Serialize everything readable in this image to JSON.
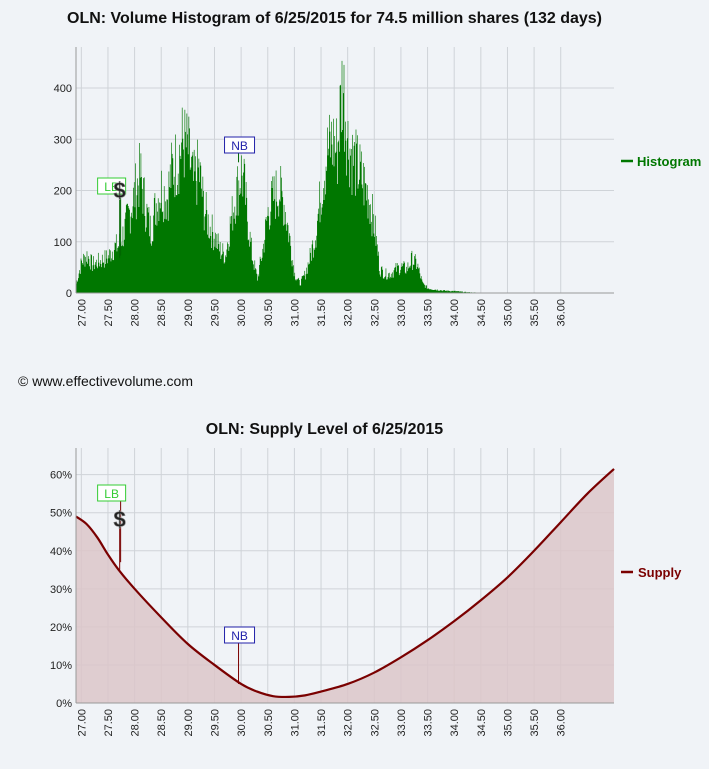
{
  "histogram_chart": {
    "title": "OLN: Volume Histogram of 6/25/2015 for 74.5 million shares (132 days)",
    "legend": "Histogram",
    "color": "#007700",
    "marker_lb": "LB",
    "marker_nb": "NB",
    "marker_dollar": "$"
  },
  "supply_chart": {
    "title": "OLN: Supply Level of 6/25/2015",
    "legend": "Supply",
    "color": "#7a0000",
    "fill": "#dcc5c9",
    "marker_lb": "LB",
    "marker_nb": "NB",
    "marker_dollar": "$"
  },
  "copyright": "© www.effectivevolume.com",
  "chart_data": [
    {
      "type": "bar",
      "title": "OLN: Volume Histogram of 6/25/2015 for 74.5 million shares (132 days)",
      "xlim": [
        26.9,
        37.0
      ],
      "ylim": [
        0,
        480
      ],
      "x_ticks": [
        "27.00",
        "27.50",
        "28.00",
        "28.50",
        "29.00",
        "29.50",
        "30.00",
        "30.50",
        "31.00",
        "31.50",
        "32.00",
        "32.50",
        "33.00",
        "33.50",
        "34.00",
        "34.50",
        "35.00",
        "35.50",
        "36.00"
      ],
      "y_ticks": [
        0,
        100,
        200,
        300,
        400
      ],
      "series": [
        {
          "name": "Histogram",
          "points": [
            [
              26.9,
              20
            ],
            [
              27.0,
              65
            ],
            [
              27.1,
              80
            ],
            [
              27.2,
              60
            ],
            [
              27.3,
              65
            ],
            [
              27.4,
              70
            ],
            [
              27.5,
              75
            ],
            [
              27.6,
              95
            ],
            [
              27.7,
              100
            ],
            [
              27.8,
              130
            ],
            [
              27.9,
              170
            ],
            [
              28.0,
              210
            ],
            [
              28.1,
              250
            ],
            [
              28.2,
              180
            ],
            [
              28.3,
              130
            ],
            [
              28.4,
              190
            ],
            [
              28.5,
              220
            ],
            [
              28.6,
              200
            ],
            [
              28.7,
              260
            ],
            [
              28.8,
              280
            ],
            [
              28.9,
              320
            ],
            [
              29.0,
              300
            ],
            [
              29.1,
              230
            ],
            [
              29.2,
              260
            ],
            [
              29.3,
              180
            ],
            [
              29.4,
              140
            ],
            [
              29.5,
              120
            ],
            [
              29.6,
              90
            ],
            [
              29.7,
              80
            ],
            [
              29.8,
              150
            ],
            [
              29.9,
              210
            ],
            [
              30.0,
              255
            ],
            [
              30.05,
              230
            ],
            [
              30.1,
              170
            ],
            [
              30.2,
              80
            ],
            [
              30.3,
              30
            ],
            [
              30.4,
              90
            ],
            [
              30.5,
              170
            ],
            [
              30.6,
              200
            ],
            [
              30.7,
              220
            ],
            [
              30.8,
              190
            ],
            [
              30.9,
              120
            ],
            [
              31.0,
              40
            ],
            [
              31.1,
              20
            ],
            [
              31.2,
              40
            ],
            [
              31.3,
              80
            ],
            [
              31.4,
              130
            ],
            [
              31.5,
              220
            ],
            [
              31.6,
              290
            ],
            [
              31.7,
              320
            ],
            [
              31.8,
              300
            ],
            [
              31.9,
              450
            ],
            [
              32.0,
              320
            ],
            [
              32.1,
              280
            ],
            [
              32.2,
              260
            ],
            [
              32.3,
              230
            ],
            [
              32.4,
              200
            ],
            [
              32.5,
              140
            ],
            [
              32.6,
              50
            ],
            [
              32.7,
              40
            ],
            [
              32.8,
              40
            ],
            [
              32.9,
              50
            ],
            [
              33.0,
              55
            ],
            [
              33.1,
              50
            ],
            [
              33.2,
              70
            ],
            [
              33.3,
              60
            ],
            [
              33.4,
              20
            ],
            [
              33.5,
              10
            ],
            [
              33.6,
              8
            ],
            [
              33.8,
              5
            ],
            [
              34.0,
              4
            ],
            [
              34.2,
              2
            ],
            [
              34.4,
              1
            ],
            [
              35.0,
              0
            ],
            [
              37.0,
              0
            ]
          ]
        }
      ],
      "annotations": [
        {
          "label": "LB",
          "x": 27.55,
          "y": 190
        },
        {
          "label": "$",
          "x": 27.72,
          "y": 185
        },
        {
          "label": "NB",
          "x": 29.97,
          "y": 255
        }
      ],
      "legend_position": "right",
      "grid": true
    },
    {
      "type": "area",
      "title": "OLN: Supply Level of 6/25/2015",
      "xlim": [
        26.9,
        37.0
      ],
      "ylim": [
        0,
        67
      ],
      "x_ticks": [
        "27.00",
        "27.50",
        "28.00",
        "28.50",
        "29.00",
        "29.50",
        "30.00",
        "30.50",
        "31.00",
        "31.50",
        "32.00",
        "32.50",
        "33.00",
        "33.50",
        "34.00",
        "34.50",
        "35.00",
        "35.50",
        "36.00"
      ],
      "y_ticks": [
        "0%",
        "10%",
        "20%",
        "30%",
        "40%",
        "50%",
        "60%"
      ],
      "series": [
        {
          "name": "Supply",
          "points": [
            [
              26.9,
              49
            ],
            [
              27.1,
              47
            ],
            [
              27.3,
              43.5
            ],
            [
              27.5,
              39
            ],
            [
              27.7,
              35
            ],
            [
              28.0,
              30
            ],
            [
              28.5,
              22.5
            ],
            [
              29.0,
              15.5
            ],
            [
              29.5,
              10
            ],
            [
              30.0,
              5
            ],
            [
              30.3,
              3
            ],
            [
              30.6,
              1.8
            ],
            [
              30.9,
              1.6
            ],
            [
              31.2,
              2
            ],
            [
              31.5,
              3
            ],
            [
              32.0,
              5
            ],
            [
              32.5,
              8
            ],
            [
              33.0,
              12
            ],
            [
              33.5,
              16.5
            ],
            [
              34.0,
              21.5
            ],
            [
              34.5,
              27
            ],
            [
              35.0,
              33
            ],
            [
              35.5,
              40
            ],
            [
              36.0,
              47.5
            ],
            [
              36.5,
              55
            ],
            [
              37.0,
              61.5
            ]
          ]
        }
      ],
      "annotations": [
        {
          "label": "LB",
          "x": 27.55,
          "y": 37
        },
        {
          "label": "$",
          "x": 27.72,
          "y": 35
        },
        {
          "label": "NB",
          "x": 29.97,
          "y": 5
        }
      ],
      "legend_position": "right",
      "grid": true
    }
  ]
}
